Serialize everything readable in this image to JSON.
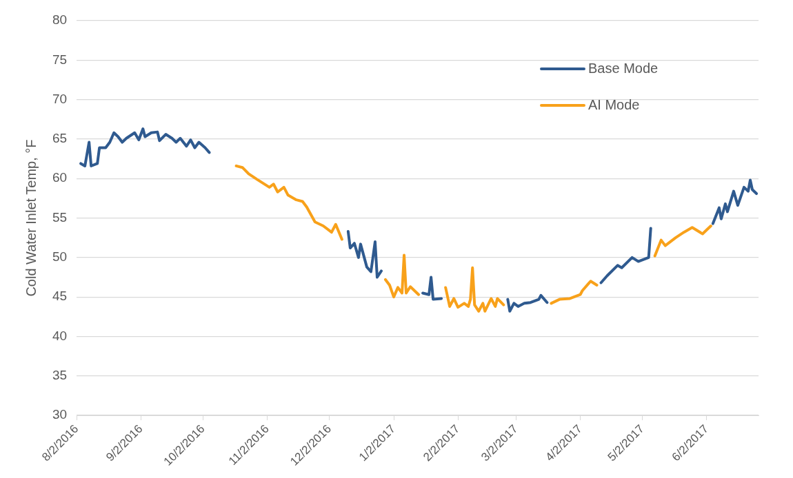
{
  "chart_data": {
    "type": "line",
    "ylabel": "Cold Water Inlet Temp, °F",
    "xlim": [
      "2016-08-02",
      "2017-06-27"
    ],
    "xticks": [
      {
        "value": "2016-08-02",
        "label": "8/2/2016"
      },
      {
        "value": "2016-09-02",
        "label": "9/2/2016"
      },
      {
        "value": "2016-10-02",
        "label": "10/2/2016"
      },
      {
        "value": "2016-11-02",
        "label": "11/2/2016"
      },
      {
        "value": "2016-12-02",
        "label": "12/2/2016"
      },
      {
        "value": "2017-01-02",
        "label": "1/2/2017"
      },
      {
        "value": "2017-02-02",
        "label": "2/2/2017"
      },
      {
        "value": "2017-03-02",
        "label": "3/2/2017"
      },
      {
        "value": "2017-04-02",
        "label": "4/2/2017"
      },
      {
        "value": "2017-05-02",
        "label": "5/2/2017"
      },
      {
        "value": "2017-06-02",
        "label": "6/2/2017"
      }
    ],
    "ylim": [
      30,
      80
    ],
    "yticks": [
      30,
      35,
      40,
      45,
      50,
      55,
      60,
      65,
      70,
      75,
      80
    ],
    "grid": "y",
    "legend": "top right",
    "marker": "none",
    "line_style": "solid",
    "series": [
      {
        "name": "Base Mode",
        "color": "#2f5a8f",
        "x": [
          "2016-08-04",
          "2016-08-06",
          "2016-08-08",
          "2016-08-09",
          "2016-08-12",
          "2016-08-13",
          "2016-08-16",
          "2016-08-18",
          "2016-08-20",
          "2016-08-22",
          "2016-08-24",
          "2016-08-26",
          "2016-08-30",
          "2016-09-01",
          "2016-09-03",
          "2016-09-04",
          "2016-09-07",
          "2016-09-10",
          "2016-09-11",
          "2016-09-14",
          "2016-09-17",
          "2016-09-19",
          "2016-09-21",
          "2016-09-24",
          "2016-09-26",
          "2016-09-28",
          "2016-09-30",
          "2016-10-03",
          "2016-10-05",
          "2016-11-01",
          "2016-12-11",
          "2016-12-12",
          "2016-12-14",
          "2016-12-16",
          "2016-12-17",
          "2016-12-20",
          "2016-12-22",
          "2016-12-24",
          "2016-12-25",
          "2016-12-27",
          "2017-01-10",
          "2017-01-16",
          "2017-01-19",
          "2017-01-20",
          "2017-01-21",
          "2017-01-25",
          "2017-02-10",
          "2017-02-26",
          "2017-02-27",
          "2017-03-01",
          "2017-03-03",
          "2017-03-06",
          "2017-03-09",
          "2017-03-13",
          "2017-03-14",
          "2017-03-17",
          "2017-04-01",
          "2017-04-12",
          "2017-04-15",
          "2017-04-20",
          "2017-04-22",
          "2017-04-27",
          "2017-04-30",
          "2017-05-05",
          "2017-05-06",
          "2017-05-20",
          "2017-06-05",
          "2017-06-08",
          "2017-06-09",
          "2017-06-11",
          "2017-06-12",
          "2017-06-15",
          "2017-06-17",
          "2017-06-20",
          "2017-06-22",
          "2017-06-23",
          "2017-06-24",
          "2017-06-26"
        ],
        "values": [
          61.9,
          61.6,
          64.6,
          61.6,
          61.9,
          63.9,
          63.9,
          64.6,
          65.8,
          65.3,
          64.6,
          65.1,
          65.8,
          64.9,
          66.3,
          65.3,
          65.8,
          65.9,
          64.8,
          65.6,
          65.1,
          64.6,
          65.1,
          64.1,
          64.9,
          63.9,
          64.6,
          63.9,
          63.3,
          null,
          53.3,
          51.2,
          51.8,
          50.0,
          51.7,
          48.8,
          48.2,
          52.0,
          47.5,
          48.3,
          null,
          45.5,
          45.3,
          47.5,
          44.7,
          44.8,
          null,
          44.7,
          43.2,
          44.2,
          43.8,
          44.2,
          44.3,
          44.7,
          45.2,
          44.3,
          null,
          46.8,
          47.7,
          49.0,
          48.7,
          50.0,
          49.5,
          50.0,
          53.7,
          null,
          54.3,
          56.3,
          54.9,
          56.8,
          55.8,
          58.4,
          56.6,
          58.9,
          58.4,
          59.8,
          58.6,
          58.1
        ]
      },
      {
        "name": "AI Mode",
        "color": "#f8a11a",
        "x": [
          "2016-10-18",
          "2016-10-21",
          "2016-10-24",
          "2016-10-28",
          "2016-10-31",
          "2016-11-03",
          "2016-11-05",
          "2016-11-07",
          "2016-11-10",
          "2016-11-12",
          "2016-11-16",
          "2016-11-19",
          "2016-11-21",
          "2016-11-25",
          "2016-11-29",
          "2016-12-03",
          "2016-12-05",
          "2016-12-08",
          "2016-12-18",
          "2016-12-29",
          "2016-12-31",
          "2017-01-02",
          "2017-01-04",
          "2017-01-06",
          "2017-01-07",
          "2017-01-08",
          "2017-01-10",
          "2017-01-14",
          "2017-01-20",
          "2017-01-27",
          "2017-01-29",
          "2017-01-31",
          "2017-02-02",
          "2017-02-05",
          "2017-02-07",
          "2017-02-08",
          "2017-02-09",
          "2017-02-10",
          "2017-02-12",
          "2017-02-14",
          "2017-02-15",
          "2017-02-18",
          "2017-02-20",
          "2017-02-21",
          "2017-02-24",
          "2017-03-10",
          "2017-03-19",
          "2017-03-23",
          "2017-03-28",
          "2017-04-02",
          "2017-04-03",
          "2017-04-06",
          "2017-04-07",
          "2017-04-10",
          "2017-04-25",
          "2017-05-08",
          "2017-05-11",
          "2017-05-13",
          "2017-05-18",
          "2017-05-22",
          "2017-05-26",
          "2017-05-31",
          "2017-06-04"
        ],
        "values": [
          61.6,
          61.4,
          60.6,
          59.9,
          59.4,
          58.9,
          59.3,
          58.3,
          58.9,
          57.9,
          57.3,
          57.1,
          56.4,
          54.5,
          54.0,
          53.2,
          54.2,
          52.3,
          null,
          47.2,
          46.5,
          45.0,
          46.2,
          45.5,
          50.3,
          45.5,
          46.3,
          45.3,
          null,
          46.2,
          43.8,
          44.8,
          43.7,
          44.2,
          43.8,
          44.7,
          48.7,
          44.0,
          43.2,
          44.2,
          43.2,
          44.8,
          43.8,
          44.8,
          44.0,
          null,
          44.2,
          44.7,
          44.8,
          45.3,
          45.8,
          46.7,
          47.0,
          46.5,
          null,
          50.2,
          52.2,
          51.5,
          52.5,
          53.2,
          53.8,
          53.0,
          54.0
        ]
      }
    ]
  }
}
